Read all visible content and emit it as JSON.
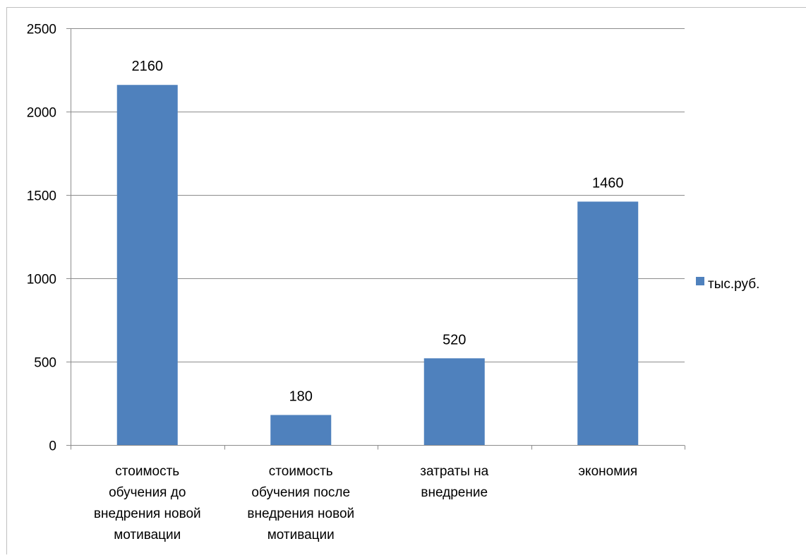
{
  "chart_data": {
    "type": "bar",
    "title": "",
    "xlabel": "",
    "ylabel": "",
    "categories": [
      [
        "стоимость",
        "обучения до",
        "внедрения новой",
        "мотивации"
      ],
      [
        "стоимость",
        "обучения после",
        "внедрения новой",
        "мотивации"
      ],
      [
        "затраты на",
        "внедрение"
      ],
      [
        "экономия"
      ]
    ],
    "series": [
      {
        "name": "тыс.руб.",
        "values": [
          2160,
          180,
          520,
          1460
        ],
        "color": "#4f81bd"
      }
    ],
    "ylim": [
      0,
      2500
    ],
    "yticks": [
      0,
      500,
      1000,
      1500,
      2000,
      2500
    ],
    "grid": true,
    "data_labels": true,
    "legend_position": "right"
  },
  "colors": {
    "bar": "#4f81bd",
    "grid": "#8c8c8c",
    "axis": "#8c8c8c",
    "frame": "#bfbfbf"
  }
}
